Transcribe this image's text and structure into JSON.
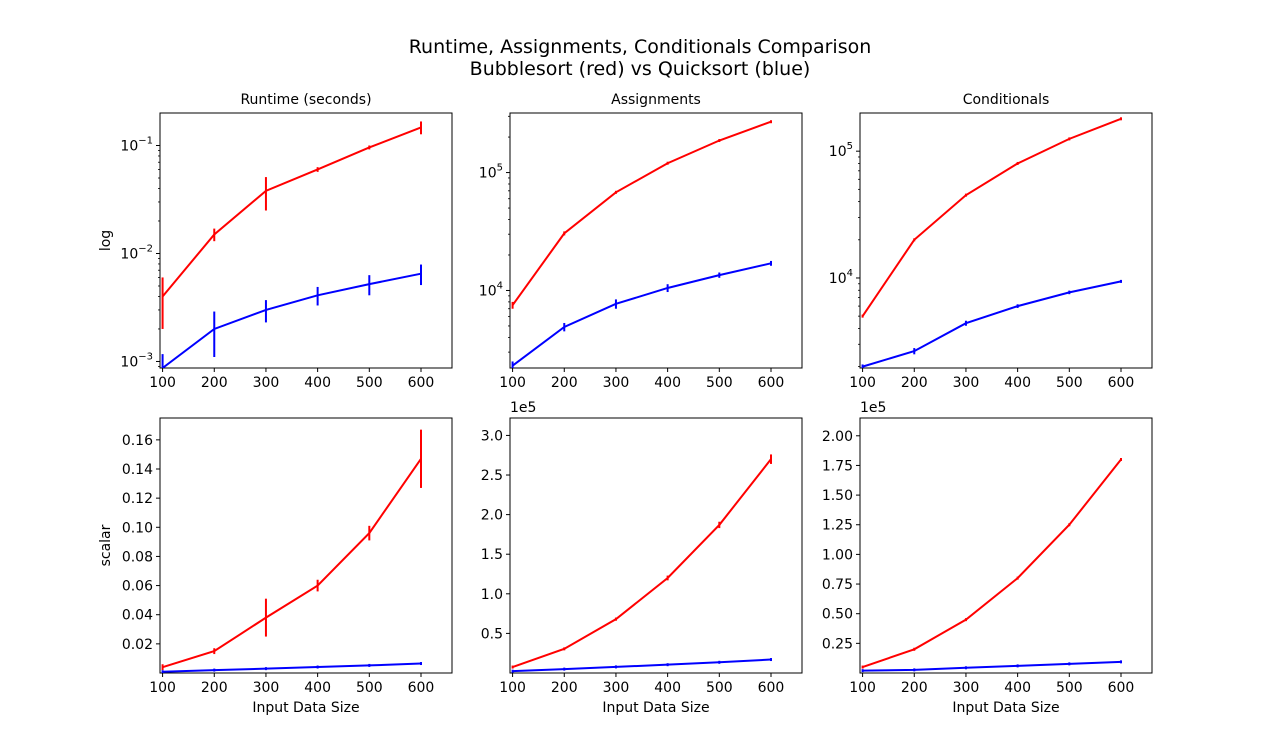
{
  "figure": {
    "title_line1": "Runtime, Assignments, Conditionals Comparison",
    "title_line2": "Bubblesort (red) vs Quicksort (blue)"
  },
  "colors": {
    "bubblesort": "#ff0000",
    "quicksort": "#0000ff"
  },
  "chart_data": [
    {
      "id": "runtime-log",
      "type": "line",
      "title": "Runtime (seconds)",
      "xlabel": "",
      "ylabel": "log",
      "yscale": "log",
      "x": [
        100,
        200,
        300,
        400,
        500,
        600
      ],
      "xticks": [
        "100",
        "200",
        "300",
        "400",
        "500",
        "600"
      ],
      "xlim": [
        95,
        660
      ],
      "ylim": [
        0.00087,
        0.2
      ],
      "yticks": [
        {
          "value": 0.001,
          "label": "10^-3"
        },
        {
          "value": 0.01,
          "label": "10^-2"
        },
        {
          "value": 0.1,
          "label": "10^-1"
        }
      ],
      "series": [
        {
          "color": "#ff0000",
          "values": [
            0.004,
            0.015,
            0.038,
            0.06,
            0.096,
            0.147
          ],
          "errors": [
            0.002,
            0.002,
            0.013,
            0.003,
            0.004,
            0.02
          ]
        },
        {
          "color": "#0000ff",
          "values": [
            0.00087,
            0.002,
            0.003,
            0.0041,
            0.0052,
            0.0065
          ],
          "errors": [
            0.0003,
            0.0009,
            0.0007,
            0.0008,
            0.0011,
            0.0014
          ]
        }
      ]
    },
    {
      "id": "assignments-log",
      "type": "line",
      "title": "Assignments",
      "xlabel": "",
      "ylabel": "",
      "yscale": "log",
      "x": [
        100,
        200,
        300,
        400,
        500,
        600
      ],
      "xticks": [
        "100",
        "200",
        "300",
        "400",
        "500",
        "600"
      ],
      "xlim": [
        95,
        660
      ],
      "ylim": [
        2200,
        320000
      ],
      "yticks": [
        {
          "value": 10000,
          "label": "10^4"
        },
        {
          "value": 100000,
          "label": "10^5"
        }
      ],
      "series": [
        {
          "color": "#ff0000",
          "values": [
            7500,
            30500,
            68000,
            120000,
            187000,
            270000
          ],
          "errors": [
            500,
            1200,
            1500,
            3000,
            4000,
            6000
          ]
        },
        {
          "color": "#0000ff",
          "values": [
            2300,
            4900,
            7700,
            10500,
            13500,
            17000
          ],
          "errors": [
            200,
            400,
            700,
            800,
            700,
            800
          ]
        }
      ]
    },
    {
      "id": "conditionals-log",
      "type": "line",
      "title": "Conditionals",
      "xlabel": "",
      "ylabel": "",
      "yscale": "log",
      "x": [
        100,
        200,
        300,
        400,
        500,
        600
      ],
      "xticks": [
        "100",
        "200",
        "300",
        "400",
        "500",
        "600"
      ],
      "xlim": [
        95,
        660
      ],
      "ylim": [
        1950,
        200000
      ],
      "yticks": [
        {
          "value": 10000,
          "label": "10^4"
        },
        {
          "value": 100000,
          "label": "10^5"
        }
      ],
      "series": [
        {
          "color": "#ff0000",
          "values": [
            5000,
            20000,
            45000,
            80000,
            125000,
            180000
          ],
          "errors": [
            0,
            0,
            0,
            0,
            0,
            0
          ]
        },
        {
          "color": "#0000ff",
          "values": [
            2000,
            2650,
            4400,
            6000,
            7700,
            9400
          ],
          "errors": [
            80,
            150,
            200,
            200,
            250,
            250
          ]
        }
      ]
    },
    {
      "id": "runtime-scalar",
      "type": "line",
      "title": "",
      "xlabel": "Input Data Size",
      "ylabel": "scalar",
      "yscale": "linear",
      "x": [
        100,
        200,
        300,
        400,
        500,
        600
      ],
      "xticks": [
        "100",
        "200",
        "300",
        "400",
        "500",
        "600"
      ],
      "xlim": [
        95,
        660
      ],
      "ylim": [
        0.0,
        0.175
      ],
      "yticks": [
        {
          "value": 0.02,
          "label": "0.02"
        },
        {
          "value": 0.04,
          "label": "0.04"
        },
        {
          "value": 0.06,
          "label": "0.06"
        },
        {
          "value": 0.08,
          "label": "0.08"
        },
        {
          "value": 0.1,
          "label": "0.10"
        },
        {
          "value": 0.12,
          "label": "0.12"
        },
        {
          "value": 0.14,
          "label": "0.14"
        },
        {
          "value": 0.16,
          "label": "0.16"
        }
      ],
      "series": [
        {
          "color": "#ff0000",
          "values": [
            0.004,
            0.015,
            0.038,
            0.06,
            0.096,
            0.147
          ],
          "errors": [
            0.002,
            0.002,
            0.013,
            0.004,
            0.005,
            0.02
          ]
        },
        {
          "color": "#0000ff",
          "values": [
            0.0009,
            0.002,
            0.003,
            0.0041,
            0.0052,
            0.0065
          ],
          "errors": [
            0.0003,
            0.0005,
            0.0004,
            0.0004,
            0.0005,
            0.0006
          ]
        }
      ]
    },
    {
      "id": "assignments-scalar",
      "type": "line",
      "title": "",
      "xlabel": "Input Data Size",
      "ylabel": "",
      "yscale": "linear",
      "x": [
        100,
        200,
        300,
        400,
        500,
        600
      ],
      "xticks": [
        "100",
        "200",
        "300",
        "400",
        "500",
        "600"
      ],
      "xlim": [
        95,
        660
      ],
      "ylim": [
        0,
        3.22
      ],
      "offset_text": "1e5",
      "yticks": [
        {
          "value": 0.5,
          "label": "0.5"
        },
        {
          "value": 1.0,
          "label": "1.0"
        },
        {
          "value": 1.5,
          "label": "1.5"
        },
        {
          "value": 2.0,
          "label": "2.0"
        },
        {
          "value": 2.5,
          "label": "2.5"
        },
        {
          "value": 3.0,
          "label": "3.0"
        }
      ],
      "series": [
        {
          "color": "#ff0000",
          "values": [
            0.075,
            0.305,
            0.68,
            1.2,
            1.87,
            2.7
          ],
          "errors": [
            0.005,
            0.01,
            0.02,
            0.03,
            0.04,
            0.06
          ]
        },
        {
          "color": "#0000ff",
          "values": [
            0.023,
            0.049,
            0.077,
            0.105,
            0.135,
            0.17
          ],
          "errors": [
            0.002,
            0.004,
            0.007,
            0.008,
            0.007,
            0.008
          ]
        }
      ]
    },
    {
      "id": "conditionals-scalar",
      "type": "line",
      "title": "",
      "xlabel": "Input Data Size",
      "ylabel": "",
      "yscale": "linear",
      "x": [
        100,
        200,
        300,
        400,
        500,
        600
      ],
      "xticks": [
        "100",
        "200",
        "300",
        "400",
        "500",
        "600"
      ],
      "xlim": [
        95,
        660
      ],
      "ylim": [
        0,
        2.15
      ],
      "offset_text": "1e5",
      "yticks": [
        {
          "value": 0.25,
          "label": "0.25"
        },
        {
          "value": 0.5,
          "label": "0.50"
        },
        {
          "value": 0.75,
          "label": "0.75"
        },
        {
          "value": 1.0,
          "label": "1.00"
        },
        {
          "value": 1.25,
          "label": "1.25"
        },
        {
          "value": 1.5,
          "label": "1.50"
        },
        {
          "value": 1.75,
          "label": "1.75"
        },
        {
          "value": 2.0,
          "label": "2.00"
        }
      ],
      "series": [
        {
          "color": "#ff0000",
          "values": [
            0.05,
            0.2,
            0.45,
            0.8,
            1.25,
            1.8
          ],
          "errors": [
            0,
            0,
            0,
            0,
            0,
            0
          ]
        },
        {
          "color": "#0000ff",
          "values": [
            0.02,
            0.0265,
            0.044,
            0.06,
            0.077,
            0.094
          ],
          "errors": [
            0,
            0,
            0,
            0,
            0,
            0
          ]
        }
      ]
    }
  ]
}
